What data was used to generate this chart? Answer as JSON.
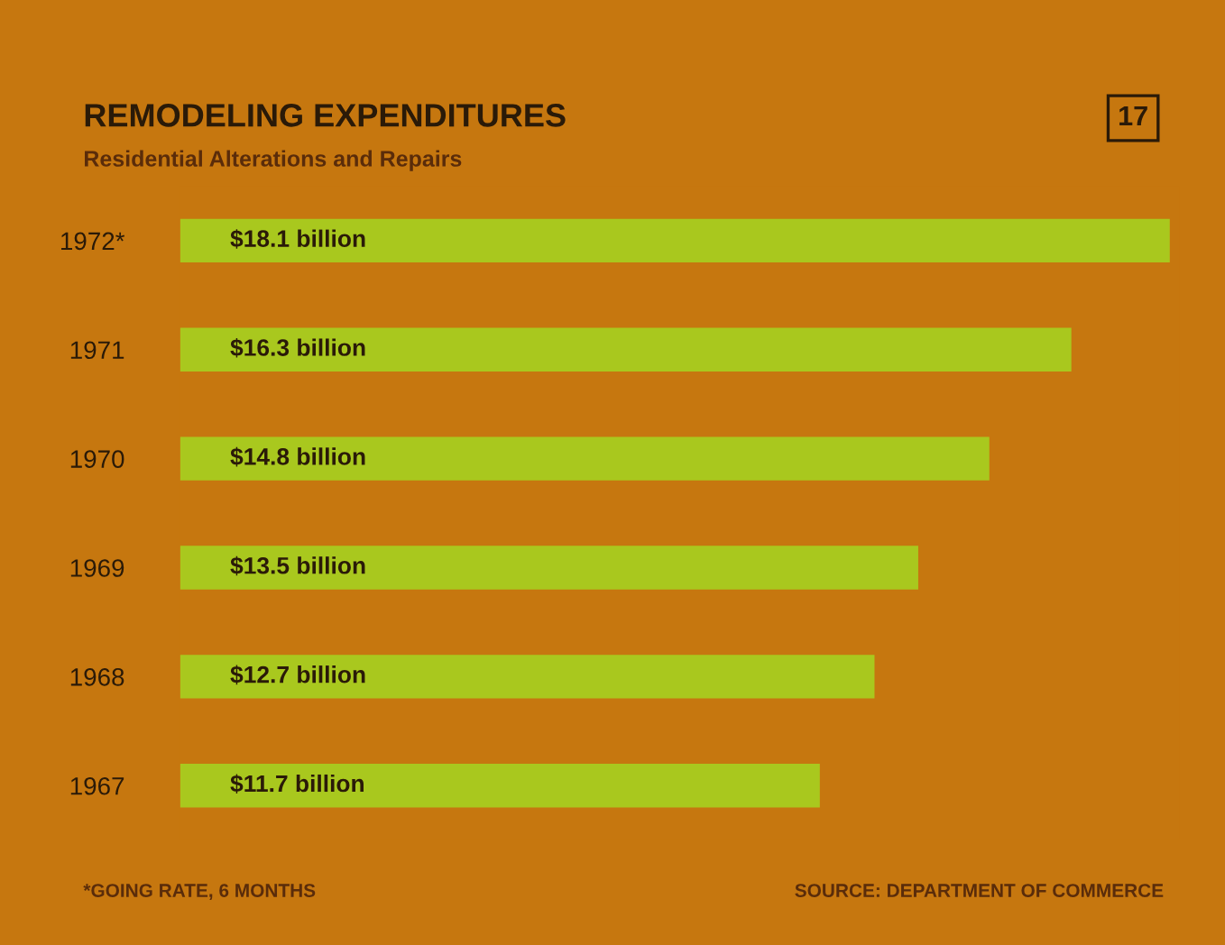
{
  "chart_data": {
    "type": "bar",
    "orientation": "horizontal",
    "title": "REMODELING EXPENDITURES",
    "subtitle": "Residential Alterations and Repairs",
    "categories": [
      "1972*",
      "1971",
      "1970",
      "1969",
      "1968",
      "1967"
    ],
    "values": [
      18.1,
      16.3,
      14.8,
      13.5,
      12.7,
      11.7
    ],
    "value_labels": [
      "$18.1 billion",
      "$16.3 billion",
      "$14.8 billion",
      "$13.5 billion",
      "$12.7 billion",
      "$11.7 billion"
    ],
    "color": "#a9c81e",
    "tick_labels": "y",
    "grid": false,
    "legend": false,
    "annotations": [
      "17",
      "*GOING RATE, 6 MONTHS",
      "SOURCE: DEPARTMENT OF COMMERCE"
    ]
  }
}
